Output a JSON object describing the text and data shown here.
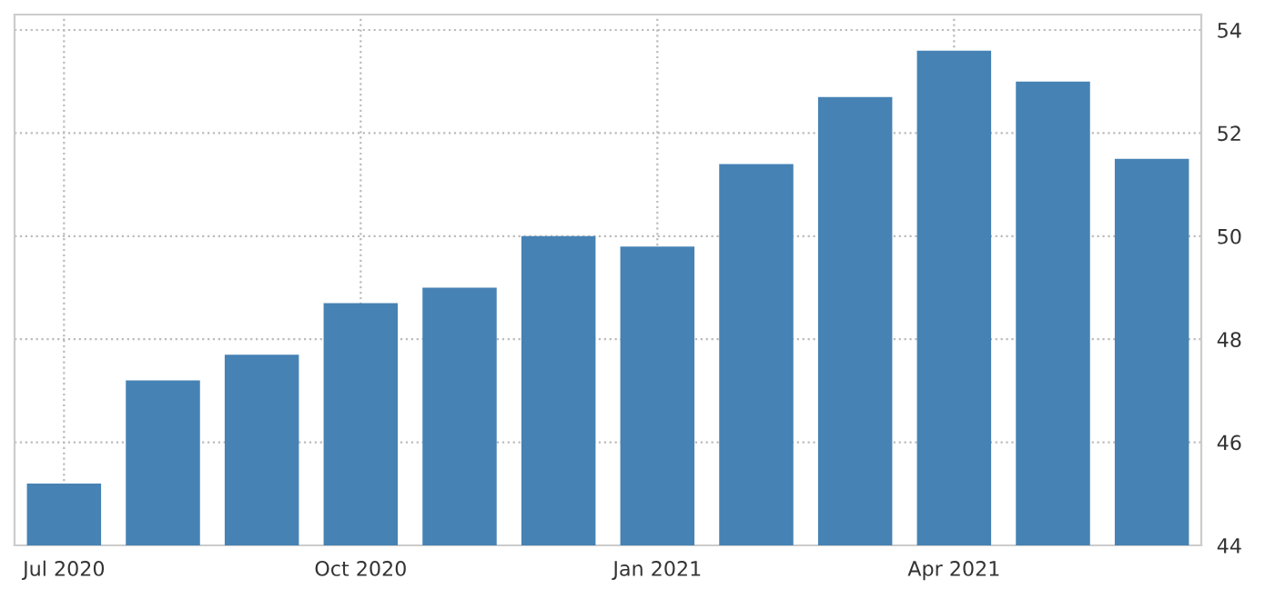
{
  "chart_data": {
    "type": "bar",
    "categories": [
      "Jul 2020",
      null,
      null,
      "Oct 2020",
      null,
      null,
      "Jan 2021",
      null,
      null,
      "Apr 2021",
      null,
      null
    ],
    "values": [
      45.2,
      47.2,
      47.7,
      48.7,
      49.0,
      50.0,
      49.8,
      51.4,
      52.7,
      53.6,
      53.0,
      51.5
    ],
    "color": "#4682b4",
    "ylim": [
      44,
      54.3
    ],
    "yticks": [
      44,
      46,
      48,
      50,
      52,
      54
    ],
    "grid": true
  }
}
